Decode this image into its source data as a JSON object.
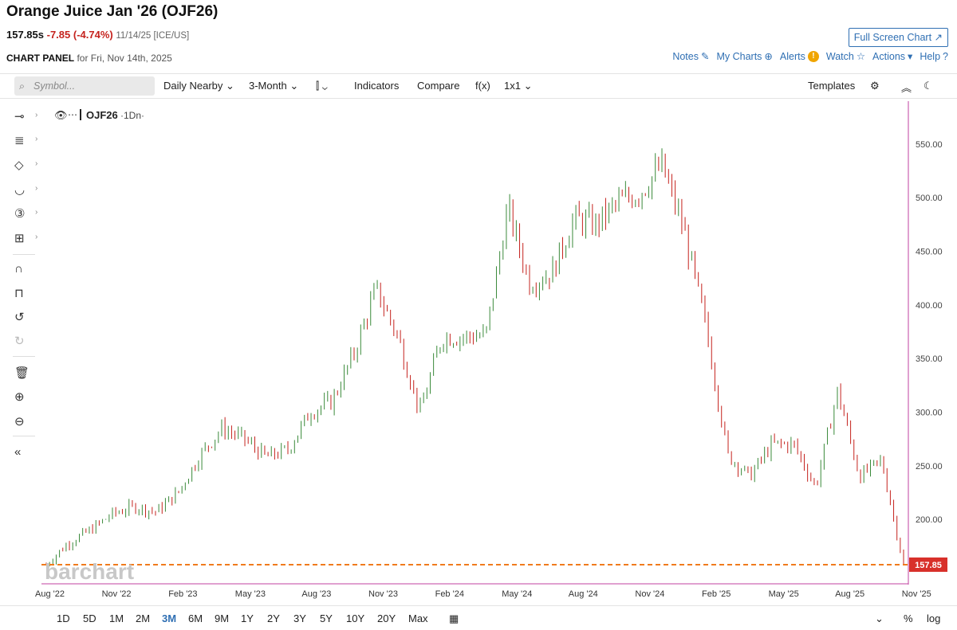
{
  "header": {
    "title": "Orange Juice Jan '26 (OJF26)",
    "last": "157.85s",
    "change": "-7.85 (-4.74%)",
    "meta": "11/14/25 [ICE/US]",
    "fullscreen_label": "Full Screen Chart ↗",
    "panel_label": "CHART PANEL",
    "panel_date": "for Fri, Nov 14th, 2025",
    "links": {
      "notes": "Notes",
      "my_charts": "My Charts",
      "alerts": "Alerts",
      "watch": "Watch",
      "actions": "Actions",
      "help": "Help"
    }
  },
  "toolbar": {
    "search_placeholder": "Symbol...",
    "interval": "Daily Nearby",
    "range": "3-Month",
    "indicators": "Indicators",
    "compare": "Compare",
    "fx": "f(x)",
    "layout": "1x1",
    "templates": "Templates"
  },
  "chart": {
    "symbol_label": "OJF26",
    "interval_label": "·1Dn·",
    "watermark": "barchart",
    "last_price_tag": "157.85",
    "y_ticks": [
      "550.00",
      "500.00",
      "450.00",
      "400.00",
      "350.00",
      "300.00",
      "250.00",
      "200.00"
    ],
    "x_ticks": [
      "Aug '22",
      "Nov '22",
      "Feb '23",
      "May '23",
      "Aug '23",
      "Nov '23",
      "Feb '24",
      "May '24",
      "Aug '24",
      "Nov '24",
      "Feb '25",
      "May '25",
      "Aug '25",
      "Nov '25"
    ],
    "up_color": "#3a8a3a",
    "down_color": "#c5231e",
    "last_line_color": "#f07b1d"
  },
  "chart_data": {
    "type": "line",
    "title": "Orange Juice Jan '26 (OJF26)",
    "xlabel": "",
    "ylabel": "",
    "ylim": [
      140,
      590
    ],
    "series": [
      {
        "name": "OJF26",
        "x": [
          "Aug '22",
          "Sep '22",
          "Oct '22",
          "Nov '22",
          "Dec '22",
          "Jan '23",
          "Feb '23",
          "Mar '23",
          "Apr '23",
          "May '23",
          "Jun '23",
          "Jul '23",
          "Aug '23",
          "Sep '23",
          "Oct '23",
          "Nov '23",
          "Dec '23",
          "Jan '24",
          "Feb '24",
          "Mar '24",
          "Apr '24",
          "May '24",
          "Jun '24",
          "Jul '24",
          "Aug '24",
          "Sep '24",
          "Oct '24",
          "Nov '24",
          "Dec '24",
          "Jan '25",
          "Feb '25",
          "Mar '25",
          "Apr '25",
          "May '25",
          "Jun '25",
          "Jul '25",
          "Aug '25",
          "Sep '25",
          "Oct '25",
          "Nov '25"
        ],
        "values": [
          158,
          178,
          190,
          205,
          212,
          207,
          225,
          260,
          285,
          275,
          258,
          265,
          300,
          310,
          355,
          415,
          370,
          300,
          370,
          370,
          372,
          490,
          420,
          430,
          480,
          475,
          495,
          505,
          530,
          470,
          380,
          260,
          240,
          270,
          270,
          230,
          320,
          240,
          255,
          157.85
        ]
      }
    ]
  },
  "bottom": {
    "periods": [
      "1D",
      "5D",
      "1M",
      "2M",
      "3M",
      "6M",
      "9M",
      "1Y",
      "2Y",
      "3Y",
      "5Y",
      "10Y",
      "20Y",
      "Max"
    ],
    "active_period": "3M",
    "pct": "%",
    "log": "log"
  }
}
